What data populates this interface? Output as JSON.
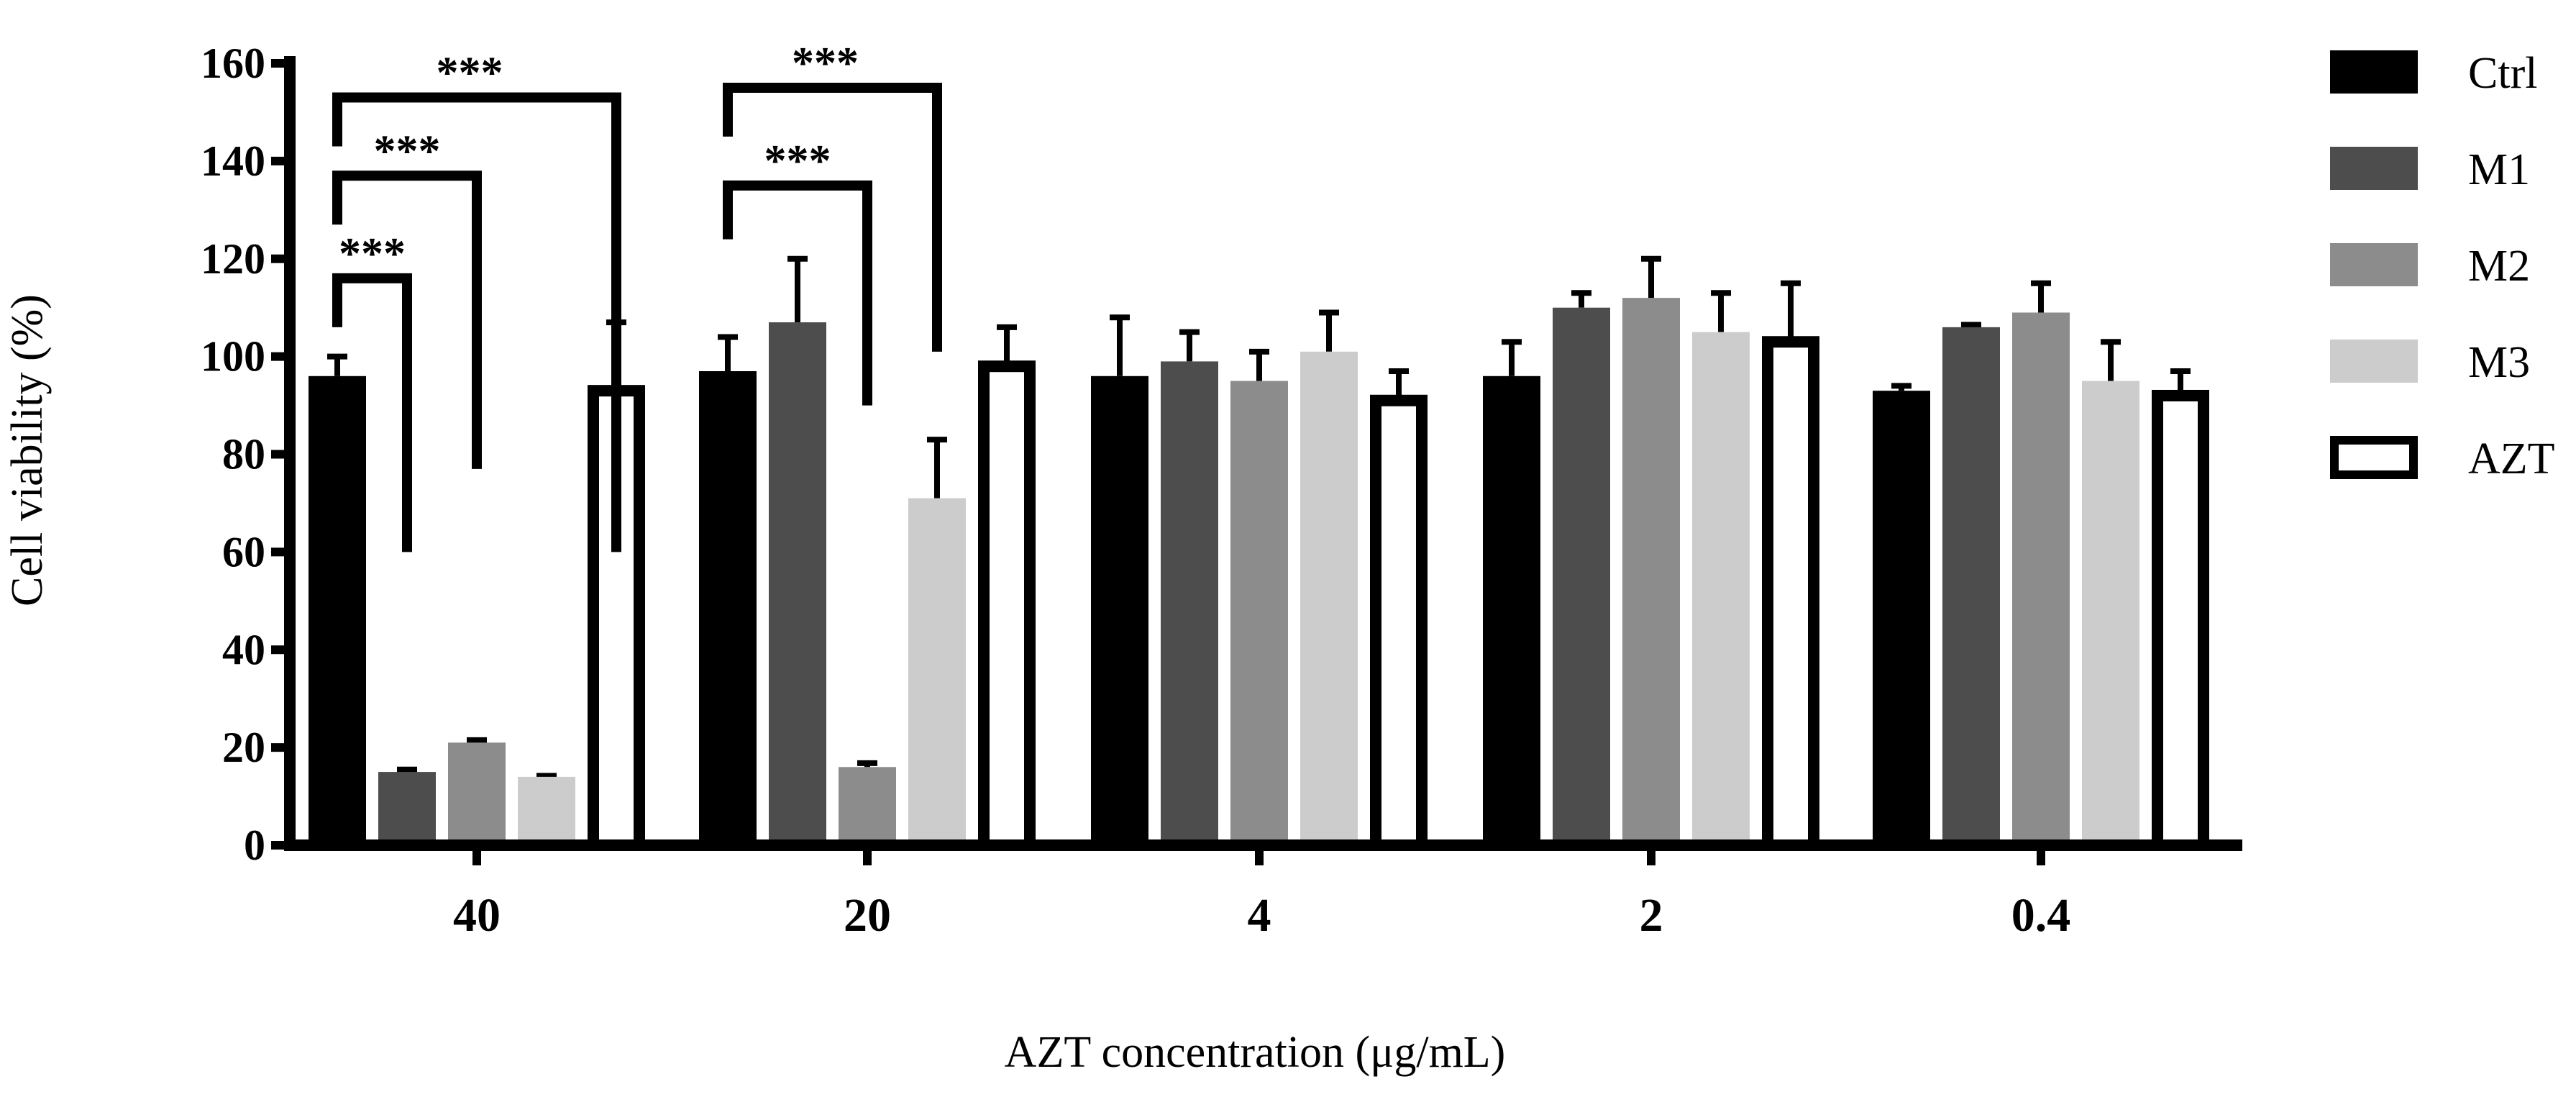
{
  "chart_data": {
    "type": "bar",
    "xlabel": "AZT concentration (μg/mL)",
    "ylabel": "Cell viability (%)",
    "ylim": [
      0,
      160
    ],
    "yticks": [
      0,
      20,
      40,
      60,
      80,
      100,
      120,
      140,
      160
    ],
    "grid": false,
    "legend_position": "right",
    "categories": [
      "40",
      "20",
      "4",
      "2",
      "0.4"
    ],
    "series": [
      {
        "name": "Ctrl",
        "color": "#000000",
        "outline": false,
        "values": [
          96,
          97,
          96,
          96,
          93
        ],
        "errors": [
          4,
          7,
          12,
          7,
          1
        ]
      },
      {
        "name": "M1",
        "color": "#4d4d4d",
        "outline": false,
        "values": [
          15,
          107,
          99,
          110,
          106
        ],
        "errors": [
          0.5,
          13,
          6,
          3,
          0.5
        ]
      },
      {
        "name": "M2",
        "color": "#8c8c8c",
        "outline": false,
        "values": [
          21,
          16,
          95,
          112,
          109
        ],
        "errors": [
          0.5,
          0.8,
          6,
          8,
          6
        ]
      },
      {
        "name": "M3",
        "color": "#cccccc",
        "outline": false,
        "values": [
          14,
          71,
          101,
          105,
          95
        ],
        "errors": [
          0.2,
          12,
          8,
          8,
          8
        ]
      },
      {
        "name": "AZT",
        "color": "#ffffff",
        "outline": true,
        "values": [
          93,
          98,
          91,
          103,
          92
        ],
        "errors": [
          14,
          8,
          6,
          12,
          5
        ]
      }
    ],
    "annotations": [
      {
        "label": "***",
        "category": "40",
        "from_series": "Ctrl",
        "to_series": "M1",
        "bracket_y": 116,
        "from_end": 106,
        "to_end": 60
      },
      {
        "label": "***",
        "category": "40",
        "from_series": "Ctrl",
        "to_series": "M2",
        "bracket_y": 137,
        "from_end": 127,
        "to_end": 77
      },
      {
        "label": "***",
        "category": "40",
        "from_series": "Ctrl",
        "to_series": "AZT",
        "bracket_y": 153,
        "from_end": 143,
        "to_end": 60
      },
      {
        "label": "***",
        "category": "20",
        "from_series": "Ctrl",
        "to_series": "M2",
        "bracket_y": 135,
        "from_end": 124,
        "to_end": 90
      },
      {
        "label": "***",
        "category": "20",
        "from_series": "Ctrl",
        "to_series": "M3",
        "bracket_y": 155,
        "from_end": 145,
        "to_end": 101
      }
    ]
  }
}
